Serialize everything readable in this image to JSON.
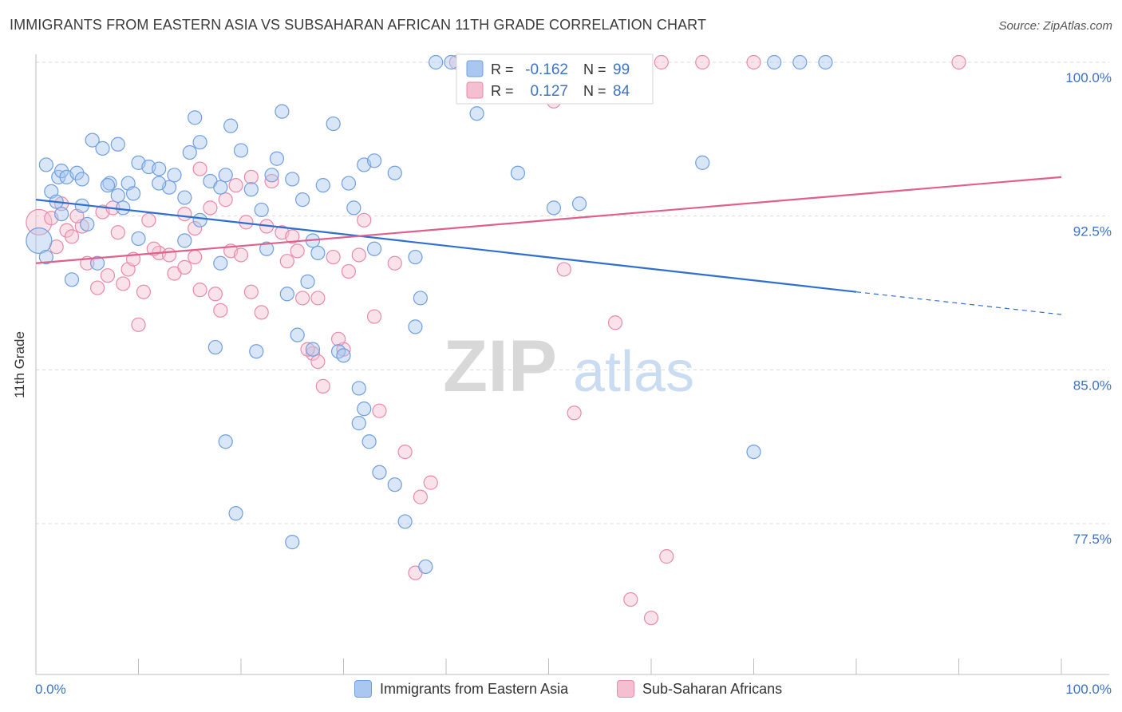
{
  "title": "IMMIGRANTS FROM EASTERN ASIA VS SUBSAHARAN AFRICAN 11TH GRADE CORRELATION CHART",
  "source": "Source: ZipAtlas.com",
  "watermark": {
    "zip": "ZIP",
    "atlas": "atlas"
  },
  "colors": {
    "blue": "#6f9fe0",
    "blue_fill": "#a9c7f0",
    "pink": "#e98aa9",
    "pink_fill": "#f5bfd1",
    "blue_line": "#2f6fcf",
    "pink_line": "#e0608a",
    "tick_label": "#3d73c9",
    "grid": "#d9d9d9"
  },
  "legend": [
    {
      "label": "Immigrants from Eastern Asia",
      "color": "#a9c7f0"
    },
    {
      "label": "Sub-Saharan Africans",
      "color": "#f5bfd1"
    }
  ],
  "stats": [
    {
      "r_label": "R =",
      "r_value": "-0.162",
      "n_label": "N =",
      "n_value": "99"
    },
    {
      "r_label": "R =",
      "r_value": "0.127",
      "n_label": "N =",
      "n_value": "84"
    }
  ],
  "chart_data": {
    "type": "scatter",
    "ylabel": "11th Grade",
    "xlabel": "",
    "xlim": [
      0,
      100
    ],
    "ylim": [
      71.5,
      101.0
    ],
    "x_tick_labels": [
      "0.0%",
      "100.0%"
    ],
    "y_ticks": [
      100.0,
      92.5,
      85.0,
      77.5
    ],
    "y_tick_labels": [
      "100.0%",
      "92.5%",
      "85.0%",
      "77.5%"
    ],
    "grid": "horizontal dashed",
    "legend_position": "bottom-center",
    "series": [
      {
        "name": "Immigrants from Eastern Asia",
        "trend": {
          "x": [
            0,
            80,
            100
          ],
          "y": [
            93.3,
            88.8,
            87.7
          ],
          "dashed_from": 80
        },
        "points": [
          [
            1.5,
            93.7
          ],
          [
            0.3,
            91.3
          ],
          [
            2.2,
            94.4
          ],
          [
            2.5,
            94.7
          ],
          [
            3.0,
            94.4
          ],
          [
            4.0,
            94.6
          ],
          [
            4.5,
            94.3
          ],
          [
            5.5,
            96.2
          ],
          [
            6.5,
            95.8
          ],
          [
            7.2,
            94.1
          ],
          [
            8.0,
            93.5
          ],
          [
            9.0,
            94.1
          ],
          [
            9.5,
            93.6
          ],
          [
            10.0,
            95.1
          ],
          [
            11.0,
            94.9
          ],
          [
            12.0,
            94.8
          ],
          [
            13.0,
            93.9
          ],
          [
            14.5,
            93.4
          ],
          [
            15.0,
            95.6
          ],
          [
            15.5,
            97.3
          ],
          [
            16.0,
            96.1
          ],
          [
            17.0,
            94.2
          ],
          [
            18.0,
            93.9
          ],
          [
            18.5,
            94.5
          ],
          [
            19.0,
            96.9
          ],
          [
            20.0,
            95.7
          ],
          [
            21.0,
            93.8
          ],
          [
            22.0,
            92.8
          ],
          [
            23.0,
            94.5
          ],
          [
            23.5,
            95.3
          ],
          [
            24.0,
            97.6
          ],
          [
            25.0,
            94.3
          ],
          [
            26.0,
            93.3
          ],
          [
            28.0,
            94.0
          ],
          [
            29.0,
            97.0
          ],
          [
            30.5,
            94.1
          ],
          [
            31.0,
            92.9
          ],
          [
            32.0,
            95.0
          ],
          [
            33.0,
            95.2
          ],
          [
            37.0,
            90.5
          ],
          [
            37.5,
            88.5
          ],
          [
            33.0,
            90.9
          ],
          [
            35.0,
            94.6
          ],
          [
            37.0,
            87.1
          ],
          [
            40.5,
            100.0
          ],
          [
            39.0,
            100.0
          ],
          [
            46.5,
            100.0
          ],
          [
            47.5,
            99.9
          ],
          [
            43.0,
            97.5
          ],
          [
            47.0,
            94.6
          ],
          [
            50.5,
            92.9
          ],
          [
            53.0,
            93.1
          ],
          [
            53.5,
            100.0
          ],
          [
            57.0,
            100.0
          ],
          [
            59.0,
            100.0
          ],
          [
            65.0,
            95.1
          ],
          [
            70.0,
            81.0
          ],
          [
            72.0,
            100.0
          ],
          [
            74.5,
            100.0
          ],
          [
            77.0,
            100.0
          ],
          [
            1.0,
            90.5
          ],
          [
            2.5,
            92.6
          ],
          [
            3.5,
            89.4
          ],
          [
            5.0,
            92.1
          ],
          [
            6.0,
            90.2
          ],
          [
            8.5,
            92.9
          ],
          [
            10.0,
            91.4
          ],
          [
            14.5,
            91.3
          ],
          [
            18.0,
            90.2
          ],
          [
            22.5,
            90.9
          ],
          [
            24.5,
            88.7
          ],
          [
            25.5,
            86.7
          ],
          [
            26.5,
            89.3
          ],
          [
            27.5,
            90.7
          ],
          [
            27.0,
            86.0
          ],
          [
            29.5,
            85.9
          ],
          [
            30.0,
            85.7
          ],
          [
            31.5,
            84.1
          ],
          [
            32.0,
            83.1
          ],
          [
            31.5,
            82.4
          ],
          [
            32.5,
            81.5
          ],
          [
            33.5,
            80.0
          ],
          [
            35.0,
            79.4
          ],
          [
            38.0,
            75.4
          ],
          [
            36.0,
            77.6
          ],
          [
            18.5,
            81.5
          ],
          [
            19.5,
            78.0
          ],
          [
            25.0,
            76.6
          ],
          [
            27.0,
            91.3
          ],
          [
            17.5,
            86.1
          ],
          [
            21.5,
            85.9
          ],
          [
            12.0,
            94.1
          ],
          [
            7.0,
            94.0
          ],
          [
            2.0,
            93.2
          ],
          [
            1.0,
            95.0
          ],
          [
            4.5,
            93.0
          ],
          [
            13.5,
            94.5
          ],
          [
            8.0,
            96.0
          ],
          [
            16.0,
            92.3
          ]
        ]
      },
      {
        "name": "Sub-Saharan Africans",
        "trend": {
          "x": [
            0,
            100
          ],
          "y": [
            90.2,
            94.4
          ]
        },
        "points": [
          [
            0.3,
            92.2
          ],
          [
            1.5,
            92.4
          ],
          [
            2.0,
            91.0
          ],
          [
            3.0,
            91.8
          ],
          [
            4.5,
            92.0
          ],
          [
            5.0,
            90.2
          ],
          [
            6.0,
            89.0
          ],
          [
            7.0,
            89.6
          ],
          [
            8.0,
            91.7
          ],
          [
            9.0,
            89.9
          ],
          [
            10.0,
            87.2
          ],
          [
            11.0,
            92.3
          ],
          [
            12.0,
            90.7
          ],
          [
            13.0,
            90.6
          ],
          [
            14.5,
            92.6
          ],
          [
            15.5,
            91.9
          ],
          [
            16.0,
            88.9
          ],
          [
            17.5,
            88.7
          ],
          [
            18.5,
            93.3
          ],
          [
            19.0,
            90.8
          ],
          [
            20.0,
            90.6
          ],
          [
            21.0,
            88.8
          ],
          [
            22.0,
            87.8
          ],
          [
            23.0,
            94.2
          ],
          [
            24.0,
            91.7
          ],
          [
            24.5,
            90.3
          ],
          [
            25.0,
            91.5
          ],
          [
            26.0,
            88.5
          ],
          [
            27.0,
            85.8
          ],
          [
            27.5,
            85.4
          ],
          [
            28.0,
            84.2
          ],
          [
            30.0,
            86.0
          ],
          [
            30.5,
            89.8
          ],
          [
            31.5,
            90.6
          ],
          [
            32.0,
            92.3
          ],
          [
            33.0,
            87.6
          ],
          [
            33.5,
            83.0
          ],
          [
            35.0,
            90.2
          ],
          [
            36.0,
            81.0
          ],
          [
            37.5,
            78.8
          ],
          [
            41.0,
            100.0
          ],
          [
            42.5,
            100.0
          ],
          [
            46.0,
            100.0
          ],
          [
            48.0,
            100.0
          ],
          [
            50.5,
            98.1
          ],
          [
            52.0,
            99.8
          ],
          [
            53.0,
            100.0
          ],
          [
            58.0,
            100.0
          ],
          [
            61.0,
            100.0
          ],
          [
            65.0,
            100.0
          ],
          [
            70.0,
            100.0
          ],
          [
            90.0,
            100.0
          ],
          [
            51.5,
            89.9
          ],
          [
            52.5,
            82.9
          ],
          [
            56.5,
            87.3
          ],
          [
            58.0,
            73.8
          ],
          [
            60.0,
            72.9
          ],
          [
            61.5,
            75.9
          ],
          [
            37.0,
            75.1
          ],
          [
            38.5,
            79.5
          ],
          [
            26.5,
            86.0
          ],
          [
            27.5,
            88.5
          ],
          [
            9.5,
            90.4
          ],
          [
            11.5,
            90.9
          ],
          [
            13.5,
            89.7
          ],
          [
            14.5,
            90.0
          ],
          [
            15.5,
            90.5
          ],
          [
            6.5,
            92.7
          ],
          [
            7.5,
            92.9
          ],
          [
            17.0,
            92.9
          ],
          [
            19.5,
            94.0
          ],
          [
            29.0,
            90.5
          ],
          [
            22.5,
            92.0
          ],
          [
            4.0,
            92.5
          ],
          [
            2.5,
            93.1
          ],
          [
            21.0,
            94.4
          ],
          [
            3.5,
            91.5
          ],
          [
            16.0,
            94.8
          ],
          [
            25.5,
            90.8
          ],
          [
            20.5,
            92.2
          ],
          [
            10.5,
            88.8
          ],
          [
            18.0,
            87.9
          ],
          [
            29.5,
            86.5
          ],
          [
            8.5,
            89.2
          ]
        ]
      }
    ]
  }
}
